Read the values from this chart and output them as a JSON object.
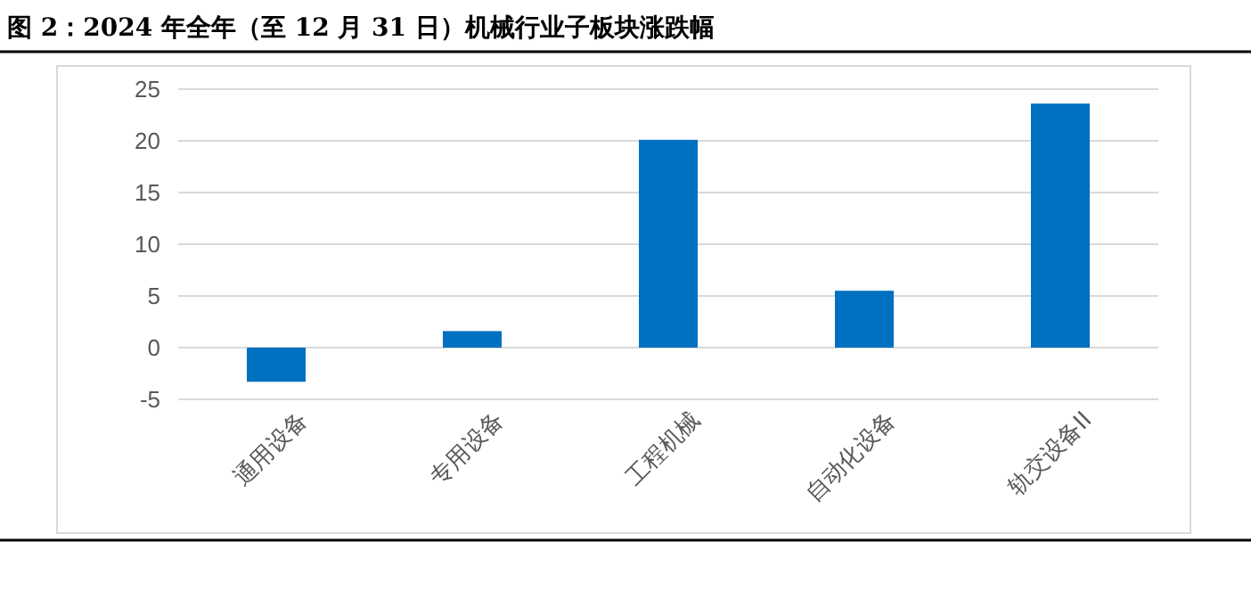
{
  "chart_data": {
    "type": "bar",
    "title": "图 2：2024 年全年（至 12 月 31 日）机械行业子板块涨跌幅",
    "categories": [
      "通用设备",
      "专用设备",
      "工程机械",
      "自动化设备",
      "轨交设备II"
    ],
    "values": [
      -3.3,
      1.6,
      20.1,
      5.5,
      23.6
    ],
    "color": "#0070c0",
    "ylim": [
      -5,
      25
    ],
    "yticks": [
      -5,
      0,
      5,
      10,
      15,
      20,
      25
    ],
    "grid": "y"
  }
}
